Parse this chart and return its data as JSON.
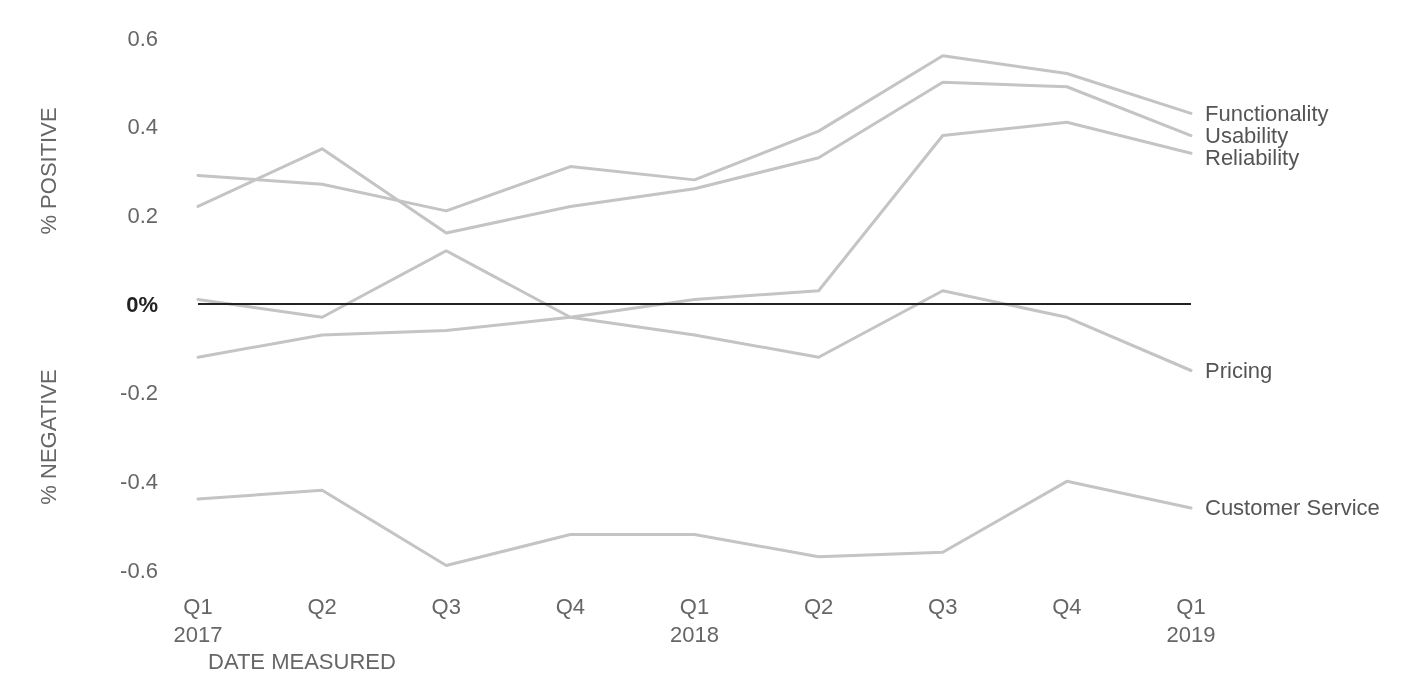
{
  "chart_data": {
    "type": "line",
    "ylabel": "% POSITIVE",
    "xlabel": "DATE MEASURED",
    "annotations": [
      "% NEGATIVE"
    ],
    "categories": [
      "Q1\n2017",
      "Q2",
      "Q3",
      "Q4",
      "Q1\n2018",
      "Q2",
      "Q3",
      "Q4",
      "Q1\n2019"
    ],
    "ylim": [
      -0.6,
      0.6
    ],
    "yticks": [
      -0.6,
      -0.4,
      -0.2,
      {
        "value": 0,
        "label": "0%"
      },
      0.2,
      0.4,
      0.6
    ],
    "grid": false,
    "legend": false,
    "marker": "none",
    "line_style": "solid",
    "ref_lines": [
      {
        "axis": "y",
        "value": 0,
        "color": "#222222"
      }
    ],
    "series": [
      {
        "name": "Functionality",
        "color": "#c4c4c4",
        "values": [
          0.29,
          0.27,
          0.21,
          0.31,
          0.28,
          0.39,
          0.56,
          0.52,
          0.43
        ]
      },
      {
        "name": "Usability",
        "color": "#c4c4c4",
        "values": [
          0.22,
          0.35,
          0.16,
          0.22,
          0.26,
          0.33,
          0.5,
          0.49,
          0.38
        ]
      },
      {
        "name": "Reliability",
        "color": "#c4c4c4",
        "values": [
          -0.12,
          -0.07,
          -0.06,
          -0.03,
          0.01,
          0.03,
          0.38,
          0.41,
          0.34
        ]
      },
      {
        "name": "Pricing",
        "color": "#c4c4c4",
        "values": [
          0.01,
          -0.03,
          0.12,
          -0.03,
          -0.07,
          -0.12,
          0.03,
          -0.03,
          -0.15
        ]
      },
      {
        "name": "Customer Service",
        "color": "#c4c4c4",
        "values": [
          -0.44,
          -0.42,
          -0.59,
          -0.52,
          -0.52,
          -0.57,
          -0.56,
          -0.4,
          -0.46
        ]
      }
    ]
  }
}
